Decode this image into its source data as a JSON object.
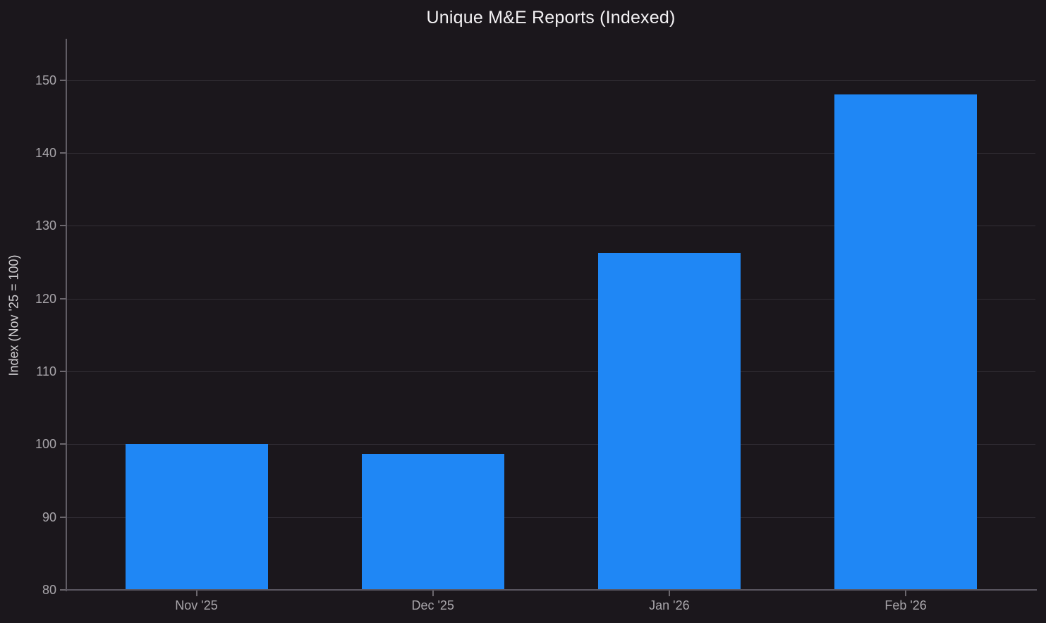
{
  "chart_data": {
    "type": "bar",
    "title": "Unique M&E Reports (Indexed)",
    "categories": [
      "Nov '25",
      "Dec '25",
      "Jan '26",
      "Feb '26"
    ],
    "values": [
      100,
      98.7,
      126.3,
      148.1
    ],
    "xlabel": "",
    "ylabel": "Index (Nov '25 = 100)",
    "ylim": [
      80,
      155.7
    ],
    "yticks": [
      80,
      90,
      100,
      110,
      120,
      130,
      140,
      150
    ],
    "grid": "horizontal",
    "legend_position": "none"
  },
  "colors": {
    "background": "#1b171c",
    "title_text": "#f3f1f3",
    "axis_title_text": "#d2d0d3",
    "tick_label_text": "#a9a6ab",
    "axis_spine": "#615d65",
    "gridline": "#322e35",
    "bar_fill": "#1f87f5"
  }
}
